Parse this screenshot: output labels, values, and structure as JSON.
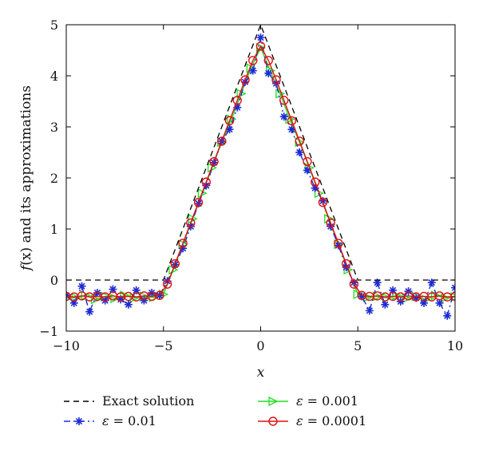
{
  "chart_data": {
    "type": "line",
    "xlabel": "x",
    "ylabel_prefix": "f",
    "ylabel_mid": "(x)",
    "ylabel_suffix": " and its approximations",
    "xlim": [
      -10,
      10
    ],
    "ylim": [
      -1,
      5
    ],
    "xticks": [
      "−10",
      "−5",
      "0",
      "5",
      "10"
    ],
    "yticks": [
      "−1",
      "0",
      "1",
      "2",
      "3",
      "4",
      "5"
    ],
    "grid": false,
    "legend_position": "below",
    "series": [
      {
        "name": "Exact solution",
        "color": "#000000",
        "style": "dashed",
        "marker": "none",
        "points": [
          [
            -10,
            0
          ],
          [
            -5,
            0
          ],
          [
            0,
            5
          ],
          [
            5,
            0
          ],
          [
            10,
            0
          ]
        ]
      },
      {
        "name": "ε = 0.01",
        "color": "#1a2bd6",
        "style": "dashdot",
        "marker": "asterisk",
        "points": [
          [
            -10.0,
            -0.3
          ],
          [
            -9.6,
            -0.45
          ],
          [
            -9.2,
            -0.12
          ],
          [
            -8.8,
            -0.62
          ],
          [
            -8.4,
            -0.25
          ],
          [
            -8.0,
            -0.4
          ],
          [
            -7.6,
            -0.18
          ],
          [
            -7.2,
            -0.38
          ],
          [
            -6.8,
            -0.48
          ],
          [
            -6.4,
            -0.2
          ],
          [
            -6.0,
            -0.4
          ],
          [
            -5.6,
            -0.25
          ],
          [
            -5.2,
            -0.3
          ],
          [
            -4.8,
            -0.02
          ],
          [
            -4.4,
            0.3
          ],
          [
            -4.0,
            0.62
          ],
          [
            -3.6,
            1.05
          ],
          [
            -3.2,
            1.5
          ],
          [
            -2.8,
            1.85
          ],
          [
            -2.4,
            2.3
          ],
          [
            -2.0,
            2.72
          ],
          [
            -1.6,
            2.95
          ],
          [
            -1.2,
            3.38
          ],
          [
            -0.8,
            3.88
          ],
          [
            -0.4,
            4.1
          ],
          [
            0.0,
            4.75
          ],
          [
            0.4,
            4.05
          ],
          [
            0.8,
            3.85
          ],
          [
            1.2,
            3.2
          ],
          [
            1.6,
            2.95
          ],
          [
            2.0,
            2.5
          ],
          [
            2.4,
            2.15
          ],
          [
            2.8,
            1.8
          ],
          [
            3.2,
            1.55
          ],
          [
            3.6,
            1.05
          ],
          [
            4.0,
            0.68
          ],
          [
            4.4,
            0.25
          ],
          [
            4.8,
            -0.05
          ],
          [
            5.2,
            -0.32
          ],
          [
            5.6,
            -0.6
          ],
          [
            6.0,
            -0.05
          ],
          [
            6.4,
            -0.48
          ],
          [
            6.8,
            -0.2
          ],
          [
            7.2,
            -0.42
          ],
          [
            7.6,
            -0.22
          ],
          [
            8.0,
            -0.35
          ],
          [
            8.4,
            -0.45
          ],
          [
            8.8,
            -0.05
          ],
          [
            9.2,
            -0.45
          ],
          [
            9.6,
            -0.7
          ],
          [
            10.0,
            -0.15
          ]
        ]
      },
      {
        "name": "ε = 0.001",
        "color": "#22dd22",
        "style": "solid",
        "marker": "triangle-right",
        "points": [
          [
            -10.0,
            -0.33
          ],
          [
            -9.5,
            -0.35
          ],
          [
            -9.0,
            -0.3
          ],
          [
            -8.5,
            -0.38
          ],
          [
            -8.0,
            -0.32
          ],
          [
            -7.5,
            -0.36
          ],
          [
            -7.0,
            -0.3
          ],
          [
            -6.5,
            -0.35
          ],
          [
            -6.0,
            -0.32
          ],
          [
            -5.5,
            -0.34
          ],
          [
            -5.0,
            -0.28
          ],
          [
            -4.5,
            0.2
          ],
          [
            -4.0,
            0.7
          ],
          [
            -3.5,
            1.2
          ],
          [
            -3.0,
            1.7
          ],
          [
            -2.5,
            2.2
          ],
          [
            -2.0,
            2.7
          ],
          [
            -1.5,
            3.15
          ],
          [
            -1.0,
            3.65
          ],
          [
            -0.5,
            4.15
          ],
          [
            0.0,
            4.55
          ],
          [
            0.5,
            4.1
          ],
          [
            1.0,
            3.65
          ],
          [
            1.5,
            3.15
          ],
          [
            2.0,
            2.7
          ],
          [
            2.5,
            2.2
          ],
          [
            3.0,
            1.7
          ],
          [
            3.5,
            1.2
          ],
          [
            4.0,
            0.7
          ],
          [
            4.5,
            0.2
          ],
          [
            5.0,
            -0.28
          ],
          [
            5.5,
            -0.34
          ],
          [
            6.0,
            -0.32
          ],
          [
            6.5,
            -0.35
          ],
          [
            7.0,
            -0.3
          ],
          [
            7.5,
            -0.36
          ],
          [
            8.0,
            -0.32
          ],
          [
            8.5,
            -0.38
          ],
          [
            9.0,
            -0.3
          ],
          [
            9.5,
            -0.35
          ],
          [
            10.0,
            -0.33
          ]
        ]
      },
      {
        "name": "ε = 0.0001",
        "color": "#e01010",
        "style": "solid",
        "marker": "circle",
        "points": [
          [
            -10.0,
            -0.32
          ],
          [
            -9.6,
            -0.33
          ],
          [
            -9.2,
            -0.31
          ],
          [
            -8.8,
            -0.33
          ],
          [
            -8.4,
            -0.32
          ],
          [
            -8.0,
            -0.33
          ],
          [
            -7.6,
            -0.31
          ],
          [
            -7.2,
            -0.33
          ],
          [
            -6.8,
            -0.32
          ],
          [
            -6.4,
            -0.33
          ],
          [
            -6.0,
            -0.31
          ],
          [
            -5.6,
            -0.32
          ],
          [
            -5.2,
            -0.3
          ],
          [
            -4.8,
            -0.08
          ],
          [
            -4.4,
            0.32
          ],
          [
            -4.0,
            0.72
          ],
          [
            -3.6,
            1.12
          ],
          [
            -3.2,
            1.52
          ],
          [
            -2.8,
            1.92
          ],
          [
            -2.4,
            2.32
          ],
          [
            -2.0,
            2.72
          ],
          [
            -1.6,
            3.12
          ],
          [
            -1.2,
            3.52
          ],
          [
            -0.8,
            3.92
          ],
          [
            -0.4,
            4.3
          ],
          [
            0.0,
            4.58
          ],
          [
            0.4,
            4.3
          ],
          [
            0.8,
            3.92
          ],
          [
            1.2,
            3.52
          ],
          [
            1.6,
            3.12
          ],
          [
            2.0,
            2.72
          ],
          [
            2.4,
            2.32
          ],
          [
            2.8,
            1.92
          ],
          [
            3.2,
            1.52
          ],
          [
            3.6,
            1.12
          ],
          [
            4.0,
            0.72
          ],
          [
            4.4,
            0.32
          ],
          [
            4.8,
            -0.08
          ],
          [
            5.2,
            -0.3
          ],
          [
            5.6,
            -0.32
          ],
          [
            6.0,
            -0.31
          ],
          [
            6.4,
            -0.33
          ],
          [
            6.8,
            -0.32
          ],
          [
            7.2,
            -0.33
          ],
          [
            7.6,
            -0.31
          ],
          [
            8.0,
            -0.33
          ],
          [
            8.4,
            -0.32
          ],
          [
            8.8,
            -0.33
          ],
          [
            9.2,
            -0.31
          ],
          [
            9.6,
            -0.33
          ],
          [
            10.0,
            -0.32
          ]
        ]
      }
    ],
    "legend": [
      {
        "label_pre": "Exact solution",
        "label_var": "",
        "label_post": "",
        "series": 0
      },
      {
        "label_pre": "",
        "label_var": "ε",
        "label_post": " = 0.001",
        "series": 2
      },
      {
        "label_pre": "",
        "label_var": "ε",
        "label_post": " = 0.01",
        "series": 1
      },
      {
        "label_pre": "",
        "label_var": "ε",
        "label_post": " = 0.0001",
        "series": 3
      }
    ]
  }
}
